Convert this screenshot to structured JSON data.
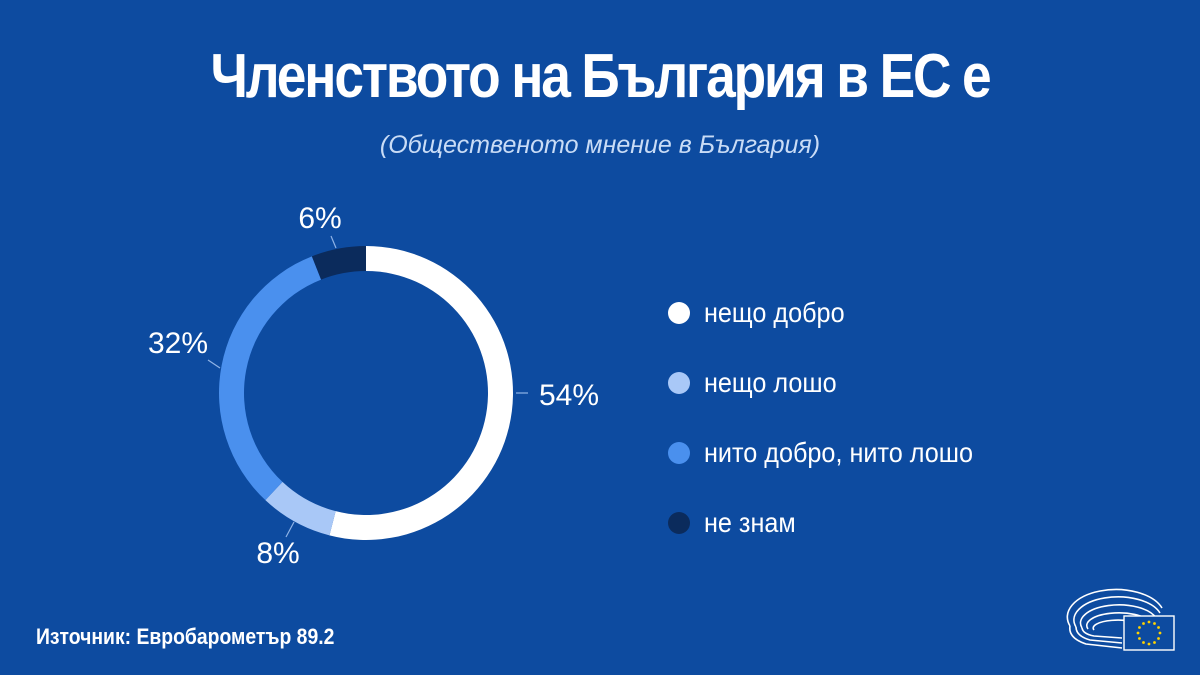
{
  "chart_data": {
    "type": "pie",
    "title": "Членството на България в ЕС е",
    "subtitle": "(Общественото мнение в България)",
    "categories": [
      "нещо добро",
      "нещо лошо",
      "нито добро, нито лошо",
      "не знам"
    ],
    "values": [
      54,
      8,
      32,
      6
    ],
    "value_labels": [
      "54%",
      "8%",
      "32%",
      "6%"
    ],
    "colors": [
      "#ffffff",
      "#a9c8f7",
      "#4a90ee",
      "#0b2b5c"
    ],
    "legend_position": "right",
    "donut": true
  },
  "footer": {
    "source": "Източник: Евробарометър 89.2"
  },
  "colors": {
    "background": "#0d4ba0",
    "leader_line": "#8fb3e6"
  },
  "logo": {
    "icon": "european-parliament-logo-icon"
  }
}
